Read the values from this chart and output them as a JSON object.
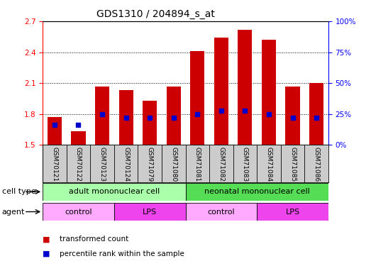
{
  "title": "GDS1310 / 204894_s_at",
  "samples": [
    "GSM70121",
    "GSM70122",
    "GSM70123",
    "GSM70124",
    "GSM71079",
    "GSM71080",
    "GSM71081",
    "GSM71082",
    "GSM71083",
    "GSM71084",
    "GSM71085",
    "GSM71086"
  ],
  "transformed_count": [
    1.77,
    1.63,
    2.07,
    2.03,
    1.93,
    2.07,
    2.41,
    2.54,
    2.62,
    2.52,
    2.07,
    2.1
  ],
  "percentile_rank_pct": [
    16,
    16,
    25,
    22,
    22,
    22,
    25,
    28,
    28,
    25,
    22,
    22
  ],
  "bar_bottom": 1.5,
  "ylim_left": [
    1.5,
    2.7
  ],
  "ylim_right": [
    0,
    100
  ],
  "yticks_left": [
    1.5,
    1.8,
    2.1,
    2.4,
    2.7
  ],
  "yticks_right": [
    0,
    25,
    50,
    75,
    100
  ],
  "bar_color": "#cc0000",
  "percentile_color": "#0000cc",
  "bar_width": 0.6,
  "sample_box_color": "#cccccc",
  "cell_type_groups": [
    {
      "label": "adult mononuclear cell",
      "start": 0,
      "end": 6,
      "color": "#aaffaa"
    },
    {
      "label": "neonatal mononuclear cell",
      "start": 6,
      "end": 12,
      "color": "#55dd55"
    }
  ],
  "agent_groups": [
    {
      "label": "control",
      "start": 0,
      "end": 3,
      "color": "#ffaaff"
    },
    {
      "label": "LPS",
      "start": 3,
      "end": 6,
      "color": "#ee44ee"
    },
    {
      "label": "control",
      "start": 6,
      "end": 9,
      "color": "#ffaaff"
    },
    {
      "label": "LPS",
      "start": 9,
      "end": 12,
      "color": "#ee44ee"
    }
  ],
  "legend_items": [
    {
      "label": "transformed count",
      "color": "#cc0000"
    },
    {
      "label": "percentile rank within the sample",
      "color": "#0000cc"
    }
  ],
  "title_fontsize": 10,
  "tick_fontsize": 7.5,
  "sample_fontsize": 6.5,
  "row_label_fontsize": 8,
  "group_label_fontsize": 8,
  "legend_fontsize": 7.5
}
